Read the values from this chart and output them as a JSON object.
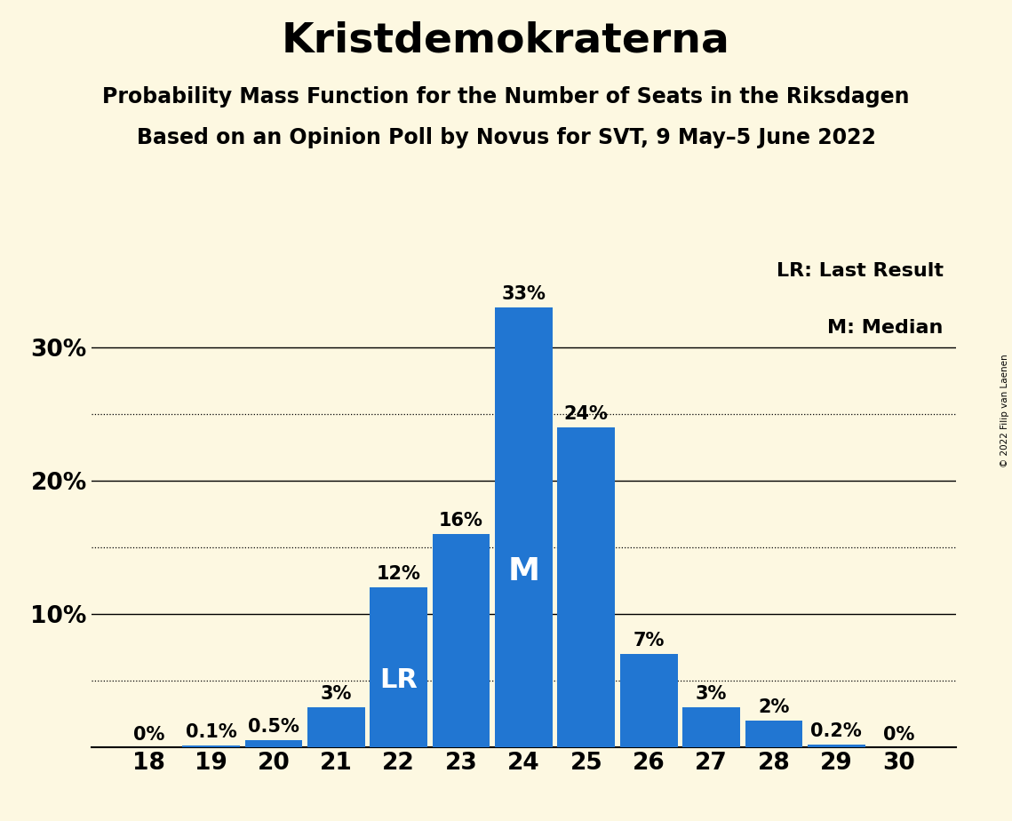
{
  "title": "Kristdemokraterna",
  "subtitle1": "Probability Mass Function for the Number of Seats in the Riksdagen",
  "subtitle2": "Based on an Opinion Poll by Novus for SVT, 9 May–5 June 2022",
  "copyright": "© 2022 Filip van Laenen",
  "seats": [
    18,
    19,
    20,
    21,
    22,
    23,
    24,
    25,
    26,
    27,
    28,
    29,
    30
  ],
  "values": [
    0.0,
    0.1,
    0.5,
    3.0,
    12.0,
    16.0,
    33.0,
    24.0,
    7.0,
    3.0,
    2.0,
    0.2,
    0.0
  ],
  "bar_labels": [
    "0%",
    "0.1%",
    "0.5%",
    "3%",
    "12%",
    "16%",
    "33%",
    "24%",
    "7%",
    "3%",
    "2%",
    "0.2%",
    "0%"
  ],
  "bar_color": "#2176d2",
  "background_color": "#fdf8e1",
  "lr_seat": 22,
  "median_seat": 24,
  "legend_lr": "LR: Last Result",
  "legend_m": "M: Median",
  "yticks": [
    10,
    20,
    30
  ],
  "ytick_labels": [
    "10%",
    "20%",
    "30%"
  ],
  "dotted_lines": [
    5,
    15,
    25
  ],
  "solid_lines": [
    10,
    20,
    30
  ],
  "ylim": [
    0,
    37
  ],
  "title_fontsize": 34,
  "subtitle_fontsize": 17,
  "bar_label_fontsize": 15,
  "axis_label_fontsize": 19,
  "legend_fontsize": 16,
  "inbar_lr_fontsize": 22,
  "inbar_m_fontsize": 26
}
